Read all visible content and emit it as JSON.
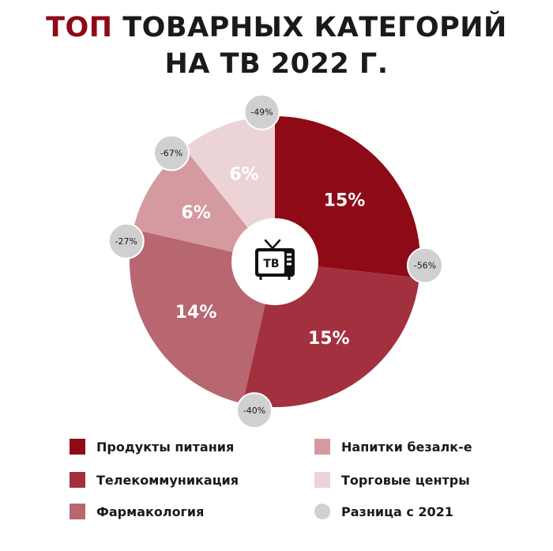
{
  "title": {
    "accent": "ТОП",
    "line1_rest": "ТОВАРНЫХ КАТЕГОРИЙ",
    "line2": "НА ТВ 2022 Г."
  },
  "center_icon": {
    "name": "tv-icon",
    "label": "ТВ"
  },
  "chart_data": {
    "type": "pie",
    "title": "ТОП ТОВАРНЫХ КАТЕГОРИЙ НА ТВ 2022 Г.",
    "slices": [
      {
        "name": "Продукты питания",
        "value": 15,
        "label": "15%",
        "change": "-56%",
        "color": "#8e0a17"
      },
      {
        "name": "Телекоммуникация",
        "value": 15,
        "label": "15%",
        "change": "-40%",
        "color": "#a3303f"
      },
      {
        "name": "Фармакология",
        "value": 14,
        "label": "14%",
        "change": "-27%",
        "color": "#b86670"
      },
      {
        "name": "Напитки безалк-е",
        "value": 6,
        "label": "6%",
        "change": "-67%",
        "color": "#d49aa0"
      },
      {
        "name": "Торговые центры",
        "value": 6,
        "label": "6%",
        "change": "-49%",
        "color": "#ecd3d6"
      }
    ],
    "change_series_name": "Разница с 2021",
    "change_badge_color": "#d0d0d0"
  },
  "legend": [
    {
      "label": "Продукты питания",
      "color": "#8e0a17",
      "shape": "square"
    },
    {
      "label": "Телекоммуникация",
      "color": "#a3303f",
      "shape": "square"
    },
    {
      "label": "Фармакология",
      "color": "#b86670",
      "shape": "square"
    },
    {
      "label": "Напитки безалк-е",
      "color": "#d49aa0",
      "shape": "square"
    },
    {
      "label": "Торговые центры",
      "color": "#ecd3d6",
      "shape": "square"
    },
    {
      "label": "Разница с 2021",
      "color": "#d0d0d0",
      "shape": "circle"
    }
  ]
}
